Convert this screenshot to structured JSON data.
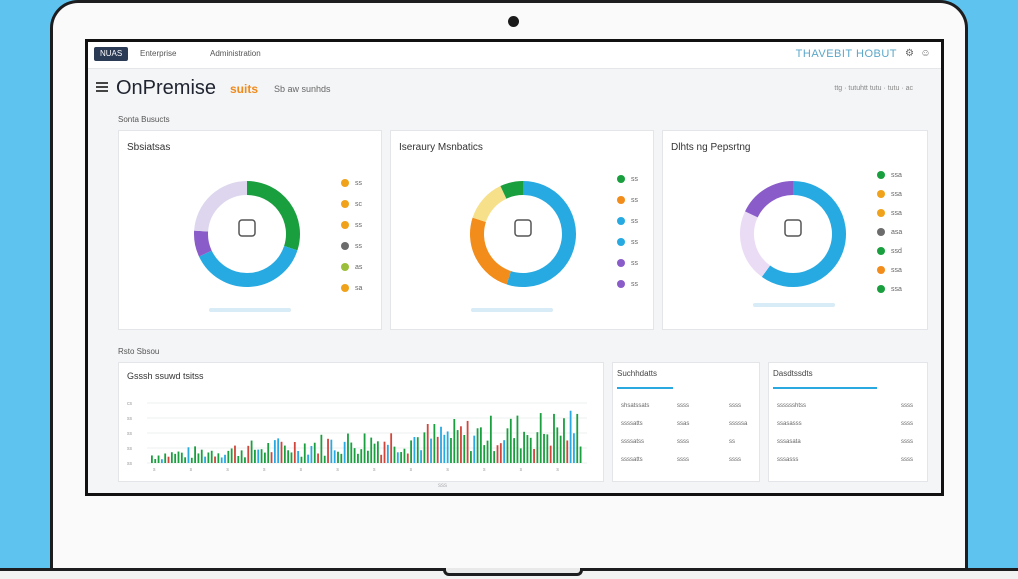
{
  "topbar": {
    "logo": "NUAS",
    "nav": [
      "Enterprise",
      "Administration"
    ],
    "brand_right": "THAVEBIT HOBUT"
  },
  "header": {
    "title": "OnPremise",
    "title_accent": "suits",
    "subtitle": "Sb aw sunhds",
    "right_text": "ttg · tutuhtt tutu · tutu · ac"
  },
  "sections": {
    "overview_label": "Sonta Busucts",
    "trends_label": "Rsto Sbsou"
  },
  "cards": [
    {
      "title": "Sbsiatsas",
      "colors": [
        "#1a9f3f",
        "#27a9e1",
        "#8a5cc9",
        "#ddd6ee"
      ],
      "values": [
        30,
        38,
        8,
        24
      ],
      "legend": [
        {
          "color": "#f0a31a",
          "label": "ss"
        },
        {
          "color": "#f0a31a",
          "label": "sc"
        },
        {
          "color": "#f0a31a",
          "label": "ss"
        },
        {
          "color": "#6c6c6c",
          "label": "ss"
        },
        {
          "color": "#9bbf3a",
          "label": "as"
        },
        {
          "color": "#f0a31a",
          "label": "sa"
        }
      ]
    },
    {
      "title": "Iseraury Msnbatics",
      "colors": [
        "#27a9e1",
        "#f28c1a",
        "#f6e08a",
        "#1a9f3f"
      ],
      "values": [
        55,
        25,
        13,
        7
      ],
      "legend": [
        {
          "color": "#1a9f3f",
          "label": "ss"
        },
        {
          "color": "#f28c1a",
          "label": "ss"
        },
        {
          "color": "#27a9e1",
          "label": "ss"
        },
        {
          "color": "#27a9e1",
          "label": "ss"
        },
        {
          "color": "#8a5cc9",
          "label": "ss"
        },
        {
          "color": "#8a5cc9",
          "label": "ss"
        }
      ]
    },
    {
      "title": "Dlhts ng Pepsrtng",
      "colors": [
        "#27a9e1",
        "#eadcf5",
        "#8a5cc9"
      ],
      "values": [
        60,
        22,
        18
      ],
      "legend": [
        {
          "color": "#1a9f3f",
          "label": "ssa"
        },
        {
          "color": "#f0a31a",
          "label": "ssa"
        },
        {
          "color": "#f0a31a",
          "label": "ssa"
        },
        {
          "color": "#6c6c6c",
          "label": "asa"
        },
        {
          "color": "#1a9f3f",
          "label": "ssd"
        },
        {
          "color": "#f28c1a",
          "label": "ssa"
        },
        {
          "color": "#1a9f3f",
          "label": "ssa"
        }
      ]
    }
  ],
  "bar_chart": {
    "title": "Gsssh ssuwd tsitss",
    "y_ticks": [
      "cs",
      "ss",
      "ss",
      "ss",
      "ss"
    ],
    "x_ticks": [
      "s",
      "s",
      "s",
      "s",
      "s",
      "s",
      "s",
      "s",
      "s",
      "s",
      "s",
      "s"
    ]
  },
  "tables": [
    {
      "tab": "Suchhdatts",
      "rows": [
        [
          "shsatssats",
          "ssss",
          "ssss"
        ],
        [
          "ssssatts",
          "ssas",
          "sssssa"
        ],
        [
          "ssssatss",
          "ssss",
          "ss"
        ],
        [
          "ssssatts",
          "ssss",
          "ssss"
        ]
      ]
    },
    {
      "tab": "Dasdtssdts",
      "rows": [
        [
          "sssssshtss",
          "ssss"
        ],
        [
          "ssasasss",
          "ssss"
        ],
        [
          "sssasata",
          "ssss"
        ],
        [
          "sssasss",
          "ssss"
        ]
      ]
    }
  ],
  "page_indicator": "sss"
}
